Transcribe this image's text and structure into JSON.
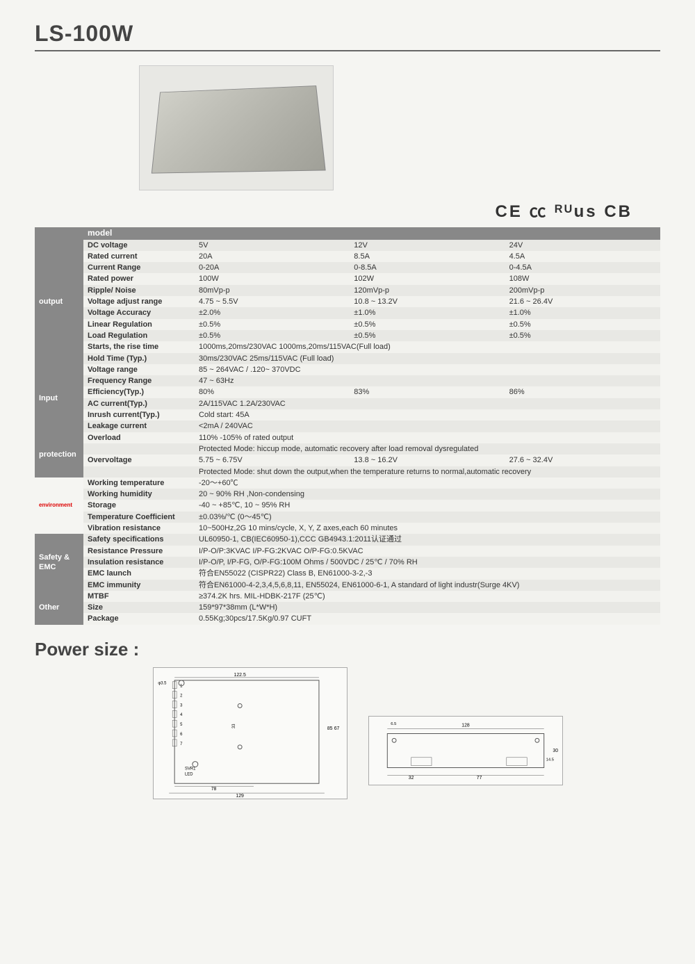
{
  "title": "LS-100W",
  "certs": "CE  ㏄  ᴿᵁus  CB",
  "header": {
    "model": "model"
  },
  "sections": [
    {
      "name": "output",
      "rows": [
        {
          "p": "DC voltage",
          "v": [
            "5V",
            "12V",
            "24V"
          ]
        },
        {
          "p": "Rated current",
          "v": [
            "20A",
            "8.5A",
            "4.5A"
          ]
        },
        {
          "p": "Current Range",
          "v": [
            "0-20A",
            "0-8.5A",
            "0-4.5A"
          ]
        },
        {
          "p": "Rated power",
          "v": [
            "100W",
            "102W",
            "108W"
          ]
        },
        {
          "p": "Ripple/ Noise",
          "v": [
            "80mVp-p",
            "120mVp-p",
            "200mVp-p"
          ]
        },
        {
          "p": "Voltage adjust range",
          "v": [
            "4.75 ~ 5.5V",
            "10.8 ~ 13.2V",
            "21.6 ~ 26.4V"
          ]
        },
        {
          "p": "Voltage Accuracy",
          "v": [
            "±2.0%",
            "±1.0%",
            "±1.0%"
          ]
        },
        {
          "p": "Linear Regulation",
          "v": [
            "±0.5%",
            "±0.5%",
            "±0.5%"
          ]
        },
        {
          "p": "Load Regulation",
          "v": [
            "±0.5%",
            "±0.5%",
            "±0.5%"
          ]
        },
        {
          "p": "Starts, the rise time",
          "span": "1000ms,20ms/230VAC   1000ms,20ms/115VAC(Full load)"
        },
        {
          "p": "Hold Time (Typ.)",
          "span": "30ms/230VAC  25ms/115VAC (Full load)"
        }
      ]
    },
    {
      "name": "Input",
      "rows": [
        {
          "p": "Voltage range",
          "span": "85 ~ 264VAC / .120~ 370VDC"
        },
        {
          "p": "Frequency Range",
          "span": "47 ~ 63Hz"
        },
        {
          "p": "Efficiency(Typ.)",
          "v": [
            "80%",
            "83%",
            "86%"
          ]
        },
        {
          "p": "AC current(Typ.)",
          "span": "2A/115VAC    1.2A/230VAC"
        },
        {
          "p": "Inrush current(Typ.)",
          "span": "Cold start: 45A"
        },
        {
          "p": "Leakage current",
          "span": "<2mA / 240VAC"
        }
      ]
    },
    {
      "name": "protection",
      "rows": [
        {
          "p": "Overload",
          "span": "110% -105% of rated output"
        },
        {
          "p": "",
          "span": "Protected Mode: hiccup mode, automatic recovery after load removal dysregulated"
        },
        {
          "p": "Overvoltage",
          "v": [
            "5.75 ~ 6.75V",
            "13.8 ~ 16.2V",
            "27.6 ~ 32.4V"
          ]
        },
        {
          "p": "",
          "span": "Protected Mode: shut down the output,when the temperature returns to normal,automatic recovery"
        }
      ]
    },
    {
      "name": "environment",
      "env": true,
      "rows": [
        {
          "p": "Working temperature",
          "span": "-20～+60℃"
        },
        {
          "p": "Working humidity",
          "span": "20 ~ 90% RH ,Non-condensing"
        },
        {
          "p": "Storage",
          "span": "-40 ~ +85℃, 10 ~ 95% RH"
        },
        {
          "p": "Temperature Coefficient",
          "span": "±0.03%/℃ (0～45℃)"
        },
        {
          "p": "Vibration resistance",
          "span": "10~500Hz,2G  10 mins/cycle, X, Y, Z axes,each 60 minutes"
        }
      ]
    },
    {
      "name": "Safety & EMC",
      "rows": [
        {
          "p": "Safety specifications",
          "span": "UL60950-1, CB(IEC60950-1),CCC GB4943.1:2011认证通过"
        },
        {
          "p": "Resistance Pressure",
          "span": "I/P-O/P:3KVAC    I/P-FG:2KVAC   O/P-FG:0.5KVAC"
        },
        {
          "p": "Insulation resistance",
          "span": "I/P-O/P, I/P-FG, O/P-FG:100M Ohms / 500VDC / 25℃ / 70% RH"
        },
        {
          "p": "EMC launch",
          "span": "符合EN55022 (CISPR22) Class B, EN61000-3-2,-3"
        },
        {
          "p": "EMC immunity",
          "span": "符合EN61000-4-2,3,4,5,6,8,11, EN55024, EN61000-6-1, A standard of light industr(Surge 4KV)"
        }
      ]
    },
    {
      "name": "Other",
      "rows": [
        {
          "p": "MTBF",
          "span": "≥374.2K hrs.  MIL-HDBK-217F (25℃)"
        },
        {
          "p": "Size",
          "span": "159*97*38mm (L*W*H)"
        },
        {
          "p": "Package",
          "span": "0.55Kg;30pcs/17.5Kg/0.97 CUFT"
        }
      ]
    }
  ],
  "power_size_title": "Power size :",
  "dims": {
    "top": {
      "w": "122.5",
      "full_w": "129",
      "inner_w": "78",
      "h": "85",
      "inner_h": "67",
      "pitch": "33",
      "hole": "φ3.5",
      "svr": "SVR1",
      "led": "LED"
    },
    "side": {
      "w": "128",
      "h": "30",
      "inner_h": "14.5",
      "l": "32",
      "r": "77",
      "edge": "6.5"
    }
  },
  "colors": {
    "header_bg": "#888888",
    "header_fg": "#ffffff",
    "row_even": "#e8e8e4",
    "row_odd": "#f2f2ee",
    "env_label": "#d00000"
  }
}
